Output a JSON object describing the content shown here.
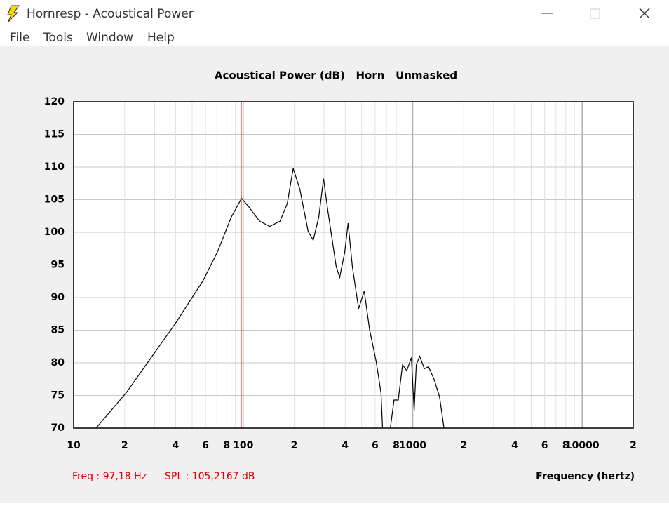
{
  "window": {
    "title": "Hornresp - Acoustical Power",
    "menu": [
      "File",
      "Tools",
      "Window",
      "Help"
    ]
  },
  "chart_data": {
    "type": "line",
    "title": "Acoustical Power (dB)   Horn   Unmasked",
    "xlabel": "Frequency (hertz)",
    "xscale": "log",
    "grid": true,
    "color": "#000000",
    "xlim": [
      10,
      20000
    ],
    "ylim": [
      70,
      120
    ],
    "xticks": [
      10,
      {
        "value": 20,
        "label": "2"
      },
      {
        "value": 40,
        "label": "4"
      },
      {
        "value": 60,
        "label": "6"
      },
      {
        "value": 80,
        "label": "8"
      },
      100,
      {
        "value": 200,
        "label": "2"
      },
      {
        "value": 400,
        "label": "4"
      },
      {
        "value": 600,
        "label": "6"
      },
      {
        "value": 800,
        "label": "8"
      },
      1000,
      {
        "value": 2000,
        "label": "2"
      },
      {
        "value": 4000,
        "label": "4"
      },
      {
        "value": 6000,
        "label": "6"
      },
      {
        "value": 8000,
        "label": "8"
      },
      10000,
      {
        "value": 20000,
        "label": "2"
      }
    ],
    "xminor": [
      30,
      50,
      70,
      90,
      300,
      500,
      700,
      900,
      3000,
      5000,
      7000,
      9000
    ],
    "yticks": [
      70,
      75,
      80,
      85,
      90,
      95,
      100,
      105,
      110,
      115,
      120
    ],
    "x": [
      13.55,
      20.4,
      40,
      58,
      70.3,
      85,
      97.9,
      107.9,
      125,
      143.6,
      165,
      182,
      197.4,
      216,
      242,
      259,
      279,
      298,
      316,
      354,
      371,
      397,
      416,
      441,
      480,
      518,
      557,
      609,
      650,
      664,
      700,
      738,
      776,
      822,
      871,
      923,
      982,
      1020,
      1050,
      1100,
      1172,
      1240,
      1336,
      1440,
      1530
    ],
    "values": [
      70,
      75.4,
      86.1,
      92.6,
      96.9,
      102.3,
      105.2,
      103.9,
      101.7,
      100.9,
      101.7,
      104.4,
      109.8,
      106.6,
      100.1,
      98.8,
      102.3,
      108.2,
      103.3,
      94.7,
      93.1,
      96.9,
      101.4,
      94.7,
      88.3,
      91.0,
      85.1,
      80.2,
      75.4,
      70,
      null,
      70,
      74.3,
      74.3,
      79.7,
      78.8,
      80.8,
      72.7,
      79.7,
      81.0,
      79.1,
      79.4,
      77.5,
      74.8,
      70
    ],
    "cursor": {
      "x": 97.18,
      "color": "#e00000",
      "labels": [
        "Freq : 97,18 Hz",
        "SPL : 105,2167 dB"
      ]
    }
  }
}
